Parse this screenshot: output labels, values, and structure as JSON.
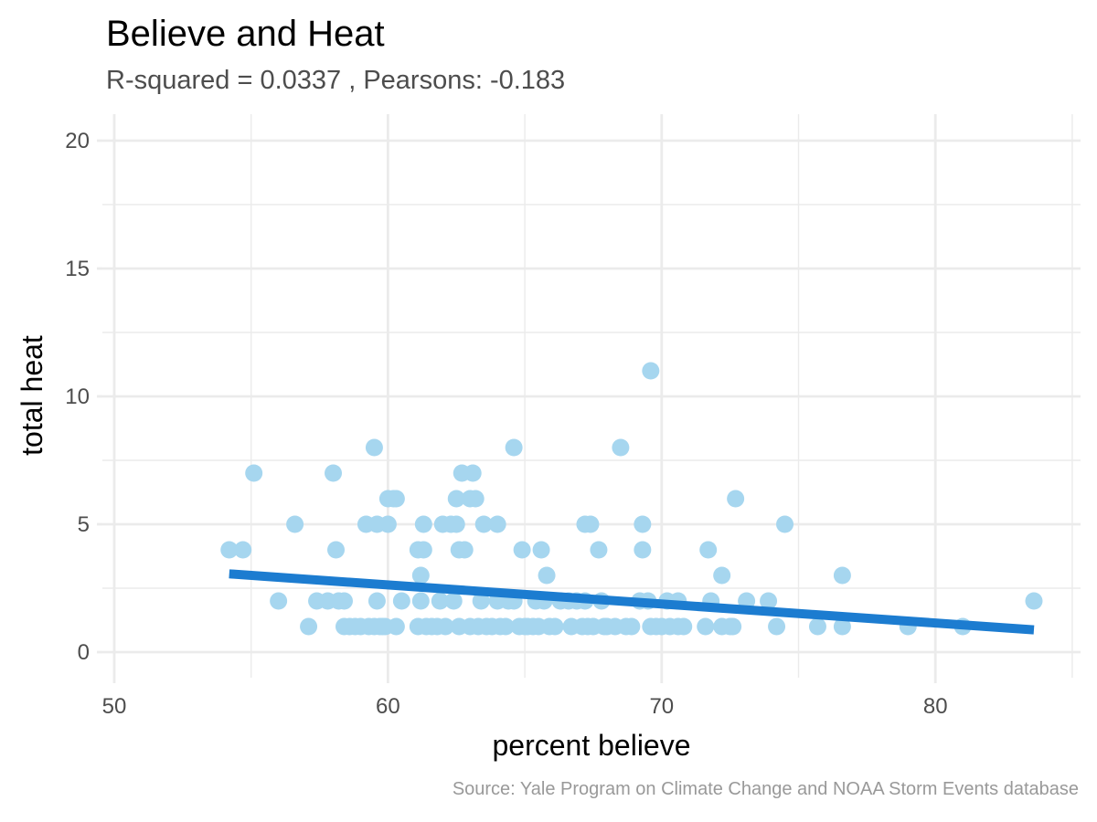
{
  "chart_data": {
    "type": "scatter",
    "title": "Believe and Heat",
    "subtitle": "R-squared =  0.0337 , Pearsons: -0.183",
    "xlabel": "percent believe",
    "ylabel": "total heat",
    "caption": "Source: Yale Program on Climate Change and NOAA Storm Events database",
    "xlim": [
      50,
      85
    ],
    "ylim": [
      0,
      20
    ],
    "x_ticks": [
      "50",
      "60",
      "70",
      "80"
    ],
    "x_tick_values": [
      50,
      60,
      70,
      80
    ],
    "x_minor_values": [
      55,
      65,
      75,
      85
    ],
    "y_ticks": [
      "0",
      "5",
      "10",
      "15",
      "20"
    ],
    "y_tick_values": [
      0,
      5,
      10,
      15,
      20
    ],
    "y_minor_values": [
      2.5,
      7.5,
      12.5,
      17.5
    ],
    "grid": true,
    "point_color": "#a6d6ef",
    "fit_color": "#1c7cd0",
    "fit_line": {
      "x": [
        54.2,
        83.6
      ],
      "y": [
        3.06,
        0.87
      ]
    },
    "points": [
      {
        "x": 54.2,
        "y": 4
      },
      {
        "x": 54.7,
        "y": 4
      },
      {
        "x": 55.1,
        "y": 7
      },
      {
        "x": 56.0,
        "y": 2
      },
      {
        "x": 56.6,
        "y": 5
      },
      {
        "x": 57.1,
        "y": 1
      },
      {
        "x": 57.4,
        "y": 2
      },
      {
        "x": 57.8,
        "y": 2
      },
      {
        "x": 58.0,
        "y": 7
      },
      {
        "x": 58.1,
        "y": 4
      },
      {
        "x": 58.2,
        "y": 2
      },
      {
        "x": 58.4,
        "y": 2
      },
      {
        "x": 58.4,
        "y": 1
      },
      {
        "x": 58.6,
        "y": 1
      },
      {
        "x": 58.8,
        "y": 1
      },
      {
        "x": 59.0,
        "y": 1
      },
      {
        "x": 59.2,
        "y": 5
      },
      {
        "x": 59.3,
        "y": 1
      },
      {
        "x": 59.5,
        "y": 1
      },
      {
        "x": 59.5,
        "y": 8
      },
      {
        "x": 59.6,
        "y": 5
      },
      {
        "x": 59.6,
        "y": 2
      },
      {
        "x": 59.7,
        "y": 1
      },
      {
        "x": 59.8,
        "y": 1
      },
      {
        "x": 59.9,
        "y": 1
      },
      {
        "x": 60.0,
        "y": 5
      },
      {
        "x": 60.0,
        "y": 6
      },
      {
        "x": 60.2,
        "y": 6
      },
      {
        "x": 60.3,
        "y": 1
      },
      {
        "x": 60.3,
        "y": 6
      },
      {
        "x": 60.5,
        "y": 2
      },
      {
        "x": 61.1,
        "y": 4
      },
      {
        "x": 61.1,
        "y": 1
      },
      {
        "x": 61.2,
        "y": 2
      },
      {
        "x": 61.2,
        "y": 3
      },
      {
        "x": 61.3,
        "y": 4
      },
      {
        "x": 61.3,
        "y": 5
      },
      {
        "x": 61.4,
        "y": 1
      },
      {
        "x": 61.6,
        "y": 1
      },
      {
        "x": 61.8,
        "y": 1
      },
      {
        "x": 61.9,
        "y": 2
      },
      {
        "x": 62.0,
        "y": 5
      },
      {
        "x": 62.1,
        "y": 1
      },
      {
        "x": 62.3,
        "y": 5
      },
      {
        "x": 62.4,
        "y": 2
      },
      {
        "x": 62.5,
        "y": 5
      },
      {
        "x": 62.5,
        "y": 6
      },
      {
        "x": 62.6,
        "y": 1
      },
      {
        "x": 62.6,
        "y": 4
      },
      {
        "x": 62.7,
        "y": 7
      },
      {
        "x": 62.8,
        "y": 4
      },
      {
        "x": 63.0,
        "y": 6
      },
      {
        "x": 63.0,
        "y": 1
      },
      {
        "x": 63.1,
        "y": 7
      },
      {
        "x": 63.2,
        "y": 6
      },
      {
        "x": 63.3,
        "y": 1
      },
      {
        "x": 63.4,
        "y": 2
      },
      {
        "x": 63.5,
        "y": 5
      },
      {
        "x": 63.6,
        "y": 1
      },
      {
        "x": 63.8,
        "y": 1
      },
      {
        "x": 64.0,
        "y": 2
      },
      {
        "x": 64.0,
        "y": 5
      },
      {
        "x": 64.1,
        "y": 1
      },
      {
        "x": 64.3,
        "y": 1
      },
      {
        "x": 64.4,
        "y": 2
      },
      {
        "x": 64.6,
        "y": 2
      },
      {
        "x": 64.6,
        "y": 8
      },
      {
        "x": 64.8,
        "y": 1
      },
      {
        "x": 64.9,
        "y": 4
      },
      {
        "x": 65.0,
        "y": 1
      },
      {
        "x": 65.1,
        "y": 1
      },
      {
        "x": 65.3,
        "y": 1
      },
      {
        "x": 65.4,
        "y": 2
      },
      {
        "x": 65.5,
        "y": 1
      },
      {
        "x": 65.6,
        "y": 4
      },
      {
        "x": 65.7,
        "y": 2
      },
      {
        "x": 65.8,
        "y": 3
      },
      {
        "x": 65.9,
        "y": 1
      },
      {
        "x": 66.1,
        "y": 1
      },
      {
        "x": 66.3,
        "y": 2
      },
      {
        "x": 66.6,
        "y": 2
      },
      {
        "x": 66.7,
        "y": 1
      },
      {
        "x": 66.9,
        "y": 2
      },
      {
        "x": 67.1,
        "y": 1
      },
      {
        "x": 67.2,
        "y": 5
      },
      {
        "x": 67.2,
        "y": 2
      },
      {
        "x": 67.3,
        "y": 1
      },
      {
        "x": 67.4,
        "y": 5
      },
      {
        "x": 67.5,
        "y": 1
      },
      {
        "x": 67.7,
        "y": 4
      },
      {
        "x": 67.8,
        "y": 2
      },
      {
        "x": 67.9,
        "y": 1
      },
      {
        "x": 68.0,
        "y": 1
      },
      {
        "x": 68.3,
        "y": 1
      },
      {
        "x": 68.5,
        "y": 8
      },
      {
        "x": 68.7,
        "y": 1
      },
      {
        "x": 68.9,
        "y": 1
      },
      {
        "x": 69.2,
        "y": 2
      },
      {
        "x": 69.3,
        "y": 4
      },
      {
        "x": 69.3,
        "y": 5
      },
      {
        "x": 69.5,
        "y": 2
      },
      {
        "x": 69.6,
        "y": 11
      },
      {
        "x": 69.6,
        "y": 1
      },
      {
        "x": 69.8,
        "y": 1
      },
      {
        "x": 70.0,
        "y": 1
      },
      {
        "x": 70.2,
        "y": 2
      },
      {
        "x": 70.3,
        "y": 1
      },
      {
        "x": 70.6,
        "y": 2
      },
      {
        "x": 70.6,
        "y": 1
      },
      {
        "x": 70.8,
        "y": 1
      },
      {
        "x": 71.6,
        "y": 1
      },
      {
        "x": 71.7,
        "y": 4
      },
      {
        "x": 71.8,
        "y": 2
      },
      {
        "x": 72.2,
        "y": 3
      },
      {
        "x": 72.2,
        "y": 1
      },
      {
        "x": 72.5,
        "y": 1
      },
      {
        "x": 72.6,
        "y": 1
      },
      {
        "x": 72.7,
        "y": 6
      },
      {
        "x": 73.1,
        "y": 2
      },
      {
        "x": 73.9,
        "y": 2
      },
      {
        "x": 74.2,
        "y": 1
      },
      {
        "x": 74.5,
        "y": 5
      },
      {
        "x": 75.7,
        "y": 1
      },
      {
        "x": 76.6,
        "y": 3
      },
      {
        "x": 76.6,
        "y": 1
      },
      {
        "x": 79.0,
        "y": 1
      },
      {
        "x": 81.0,
        "y": 1
      },
      {
        "x": 83.6,
        "y": 2
      }
    ]
  }
}
